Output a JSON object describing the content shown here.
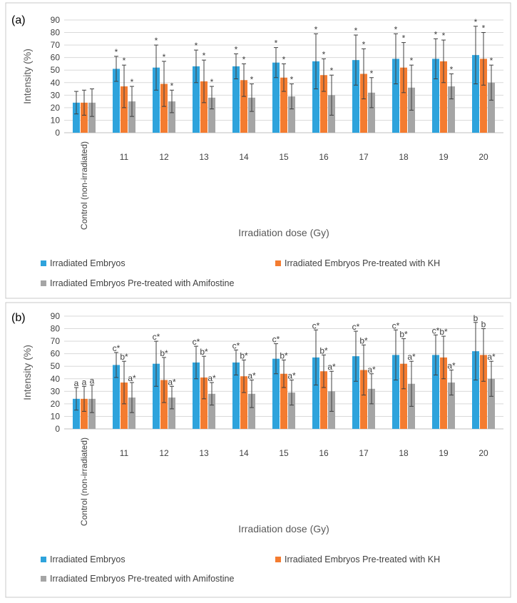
{
  "colors": {
    "irradiated": "#2ea3dc",
    "kh": "#f47c30",
    "amifostine": "#a5a5a5"
  },
  "chart_data": [
    {
      "panel_label": "(a)",
      "type": "bar",
      "ylabel": "Intensity (%)",
      "xlabel": "Irradiation dose (Gy)",
      "ylim": [
        0,
        90
      ],
      "yticks": [
        "0",
        "10",
        "20",
        "30",
        "40",
        "50",
        "60",
        "70",
        "80",
        "90"
      ],
      "grid": true,
      "legend_position": "bottom",
      "categories": [
        "Control (non-irradiated)",
        "11",
        "12",
        "13",
        "14",
        "15",
        "16",
        "17",
        "18",
        "19",
        "20"
      ],
      "series": [
        {
          "name": "Irradiated Embryos",
          "values": [
            24,
            51,
            52,
            53,
            53,
            56,
            57,
            58,
            59,
            59,
            62
          ],
          "errors": [
            9,
            10,
            18,
            13,
            10,
            12,
            22,
            20,
            20,
            16,
            23
          ],
          "labels": [
            "",
            "*",
            "*",
            "*",
            "*",
            "*",
            "*",
            "*",
            "*",
            "*",
            "*"
          ]
        },
        {
          "name": "Irradiated Embryos Pre-treated with KH",
          "values": [
            24,
            37,
            39,
            41,
            42,
            44,
            46,
            47,
            52,
            57,
            59
          ],
          "errors": [
            10,
            17,
            18,
            17,
            13,
            11,
            13,
            20,
            20,
            17,
            21
          ],
          "labels": [
            "",
            "*",
            "*",
            "*",
            "*",
            "*",
            "*",
            "*",
            "*",
            "*",
            "*"
          ]
        },
        {
          "name": "Irradiated Embryos Pre-treated with Amifostine",
          "values": [
            24,
            25,
            25,
            28,
            28,
            29,
            30,
            32,
            36,
            37,
            40
          ],
          "errors": [
            11,
            12,
            9,
            9,
            11,
            10,
            16,
            12,
            18,
            10,
            14
          ],
          "labels": [
            "",
            "*",
            "*",
            "*",
            "*",
            "*",
            "*",
            "*",
            "*",
            "*",
            "*"
          ]
        }
      ]
    },
    {
      "panel_label": "(b)",
      "type": "bar",
      "ylabel": "Intensity (%)",
      "xlabel": "Irradiation dose (Gy)",
      "ylim": [
        0,
        90
      ],
      "yticks": [
        "0",
        "10",
        "20",
        "30",
        "40",
        "50",
        "60",
        "70",
        "80",
        "90"
      ],
      "grid": true,
      "legend_position": "bottom",
      "categories": [
        "Control (non-irradiated)",
        "11",
        "12",
        "13",
        "14",
        "15",
        "16",
        "17",
        "18",
        "19",
        "20"
      ],
      "series": [
        {
          "name": "Irradiated Embryos",
          "values": [
            24,
            51,
            52,
            53,
            53,
            56,
            57,
            58,
            59,
            59,
            62
          ],
          "errors": [
            9,
            10,
            18,
            13,
            10,
            12,
            22,
            20,
            20,
            16,
            23
          ],
          "labels": [
            "a",
            "c*",
            "c*",
            "c*",
            "c*",
            "c*",
            "c*",
            "c*",
            "c*",
            "c*",
            "b"
          ]
        },
        {
          "name": "Irradiated Embryos Pre-treated with KH",
          "values": [
            24,
            37,
            39,
            41,
            42,
            44,
            46,
            47,
            52,
            57,
            59
          ],
          "errors": [
            10,
            17,
            18,
            17,
            13,
            11,
            13,
            20,
            20,
            17,
            21
          ],
          "labels": [
            "a",
            "b*",
            "b*",
            "b*",
            "b*",
            "b*",
            "b*",
            "b*",
            "b*",
            "b*",
            "b"
          ]
        },
        {
          "name": "Irradiated Embryos Pre-treated with Amifostine",
          "values": [
            24,
            25,
            25,
            28,
            28,
            29,
            30,
            32,
            36,
            37,
            40
          ],
          "errors": [
            11,
            12,
            9,
            9,
            11,
            10,
            16,
            12,
            18,
            10,
            14
          ],
          "labels": [
            "a",
            "a*",
            "a*",
            "a*",
            "a*",
            "a*",
            "a*",
            "a*",
            "a*",
            "a*",
            "a*"
          ]
        }
      ]
    }
  ]
}
